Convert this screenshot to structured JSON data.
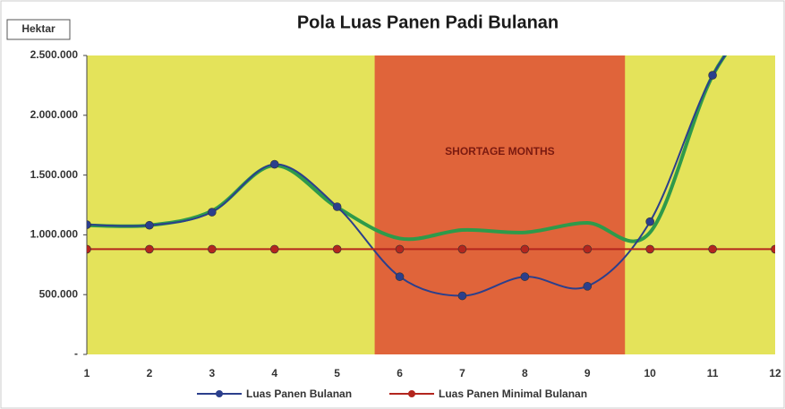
{
  "chart_data": {
    "type": "line",
    "title": "Pola Luas Panen Padi Bulanan",
    "y_label": "Hektar",
    "annotation": "SHORTAGE MONTHS",
    "shortage_band": [
      5.6,
      9.6
    ],
    "x": [
      1,
      2,
      3,
      4,
      5,
      6,
      7,
      8,
      9,
      10,
      11,
      12
    ],
    "xlim": [
      1,
      12
    ],
    "xticks": [
      1,
      2,
      3,
      4,
      5,
      6,
      7,
      8,
      9,
      10,
      11,
      12
    ],
    "ylim": [
      0,
      2500000
    ],
    "yticks": [
      {
        "value": 0,
        "label": "-"
      },
      {
        "value": 500000,
        "label": "500.000"
      },
      {
        "value": 1000000,
        "label": "1.000.000"
      },
      {
        "value": 1500000,
        "label": "1.500.000"
      },
      {
        "value": 2000000,
        "label": "2.000.000"
      },
      {
        "value": 2500000,
        "label": "2.500.000"
      }
    ],
    "series": [
      {
        "color": "#2e9a4a",
        "values": [
          1080000,
          1080000,
          1200000,
          1580000,
          1230000,
          970000,
          1040000,
          1020000,
          1100000,
          1020000,
          2330000,
          3000000
        ]
      },
      {
        "name": "Luas Panen Bulanan",
        "color": "#2b3f8c",
        "values": [
          1085000,
          1080000,
          1190000,
          1590000,
          1235000,
          650000,
          490000,
          650000,
          570000,
          1110000,
          2335000,
          3000000
        ]
      },
      {
        "name": "Luas Panen Minimal Bulanan",
        "color": "#b3261e",
        "values": [
          880000,
          880000,
          880000,
          880000,
          880000,
          880000,
          880000,
          880000,
          880000,
          880000,
          880000,
          880000
        ]
      }
    ]
  }
}
